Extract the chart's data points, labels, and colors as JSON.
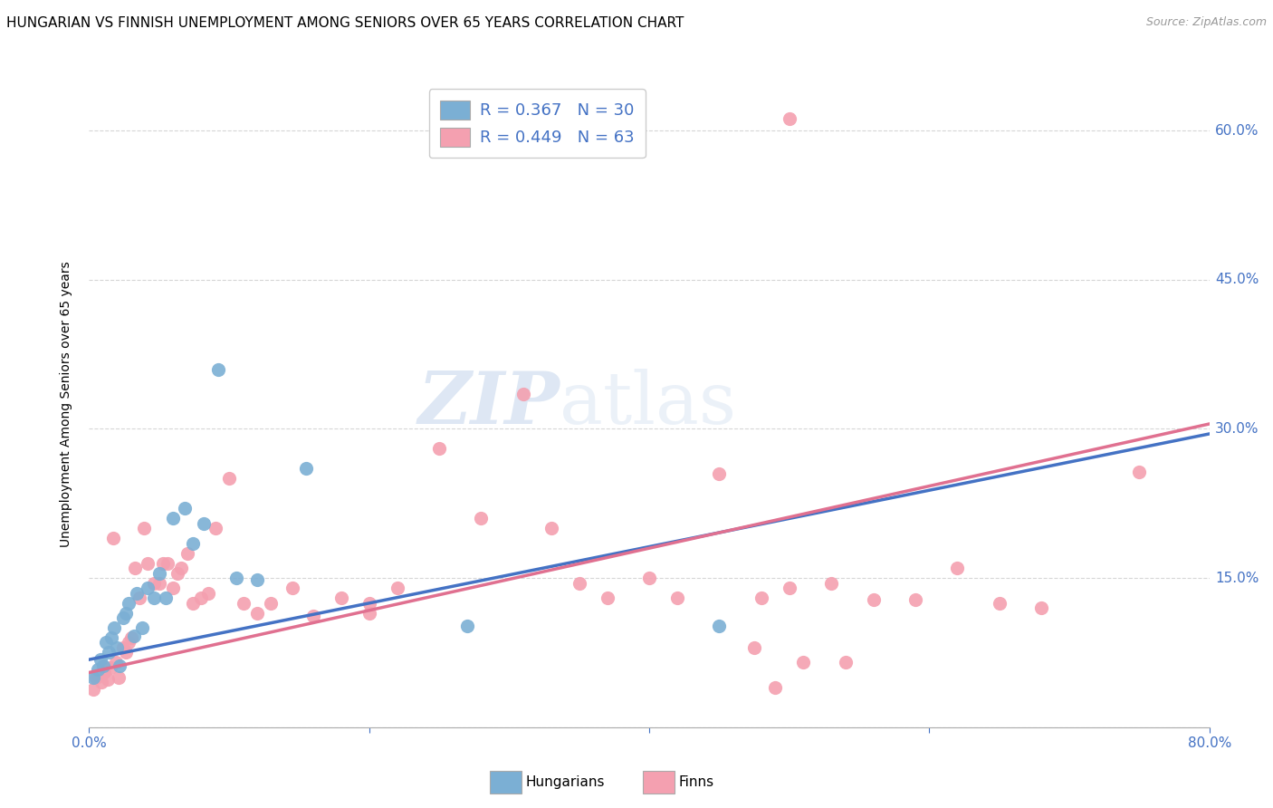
{
  "title": "HUNGARIAN VS FINNISH UNEMPLOYMENT AMONG SENIORS OVER 65 YEARS CORRELATION CHART",
  "source": "Source: ZipAtlas.com",
  "ylabel": "Unemployment Among Seniors over 65 years",
  "xlim": [
    0.0,
    0.8
  ],
  "ylim": [
    0.0,
    0.65
  ],
  "ytick_positions": [
    0.0,
    0.15,
    0.3,
    0.45,
    0.6
  ],
  "ytick_labels": [
    "",
    "15.0%",
    "30.0%",
    "45.0%",
    "60.0%"
  ],
  "hungarian_color": "#7BAFD4",
  "finnish_color": "#F4A0B0",
  "hun_trend_color": "#4472C4",
  "fin_trend_color": "#E07090",
  "axis_color": "#4472C4",
  "grid_color": "#CCCCCC",
  "hungarians_x": [
    0.003,
    0.006,
    0.008,
    0.01,
    0.012,
    0.014,
    0.016,
    0.018,
    0.02,
    0.022,
    0.024,
    0.026,
    0.028,
    0.032,
    0.034,
    0.038,
    0.042,
    0.046,
    0.05,
    0.055,
    0.06,
    0.068,
    0.074,
    0.082,
    0.092,
    0.105,
    0.12,
    0.155,
    0.27,
    0.45
  ],
  "hungarians_y": [
    0.05,
    0.058,
    0.068,
    0.062,
    0.085,
    0.075,
    0.09,
    0.1,
    0.08,
    0.062,
    0.11,
    0.115,
    0.125,
    0.092,
    0.135,
    0.1,
    0.14,
    0.13,
    0.155,
    0.13,
    0.21,
    0.22,
    0.185,
    0.205,
    0.36,
    0.15,
    0.148,
    0.26,
    0.102,
    0.102
  ],
  "finns_x": [
    0.003,
    0.005,
    0.007,
    0.009,
    0.011,
    0.013,
    0.015,
    0.017,
    0.019,
    0.021,
    0.024,
    0.026,
    0.028,
    0.03,
    0.033,
    0.036,
    0.039,
    0.042,
    0.046,
    0.05,
    0.053,
    0.056,
    0.06,
    0.063,
    0.066,
    0.07,
    0.074,
    0.08,
    0.085,
    0.09,
    0.1,
    0.11,
    0.12,
    0.13,
    0.145,
    0.16,
    0.18,
    0.2,
    0.22,
    0.25,
    0.28,
    0.31,
    0.33,
    0.35,
    0.37,
    0.4,
    0.42,
    0.45,
    0.48,
    0.5,
    0.53,
    0.56,
    0.59,
    0.62,
    0.65,
    0.68,
    0.51,
    0.5,
    0.54,
    0.75,
    0.475,
    0.2,
    0.49
  ],
  "finns_y": [
    0.038,
    0.05,
    0.052,
    0.045,
    0.055,
    0.048,
    0.06,
    0.19,
    0.065,
    0.05,
    0.08,
    0.075,
    0.085,
    0.09,
    0.16,
    0.13,
    0.2,
    0.165,
    0.145,
    0.145,
    0.165,
    0.165,
    0.14,
    0.155,
    0.16,
    0.175,
    0.125,
    0.13,
    0.135,
    0.2,
    0.25,
    0.125,
    0.115,
    0.125,
    0.14,
    0.112,
    0.13,
    0.125,
    0.14,
    0.28,
    0.21,
    0.335,
    0.2,
    0.145,
    0.13,
    0.15,
    0.13,
    0.255,
    0.13,
    0.14,
    0.145,
    0.128,
    0.128,
    0.16,
    0.125,
    0.12,
    0.065,
    0.612,
    0.065,
    0.257,
    0.08,
    0.115,
    0.04
  ],
  "hun_trend_y_start": 0.068,
  "hun_trend_y_end": 0.295,
  "fin_trend_y_start": 0.055,
  "fin_trend_y_end": 0.305,
  "title_fontsize": 11,
  "tick_fontsize": 11,
  "source_fontsize": 9,
  "marker_size": 120
}
